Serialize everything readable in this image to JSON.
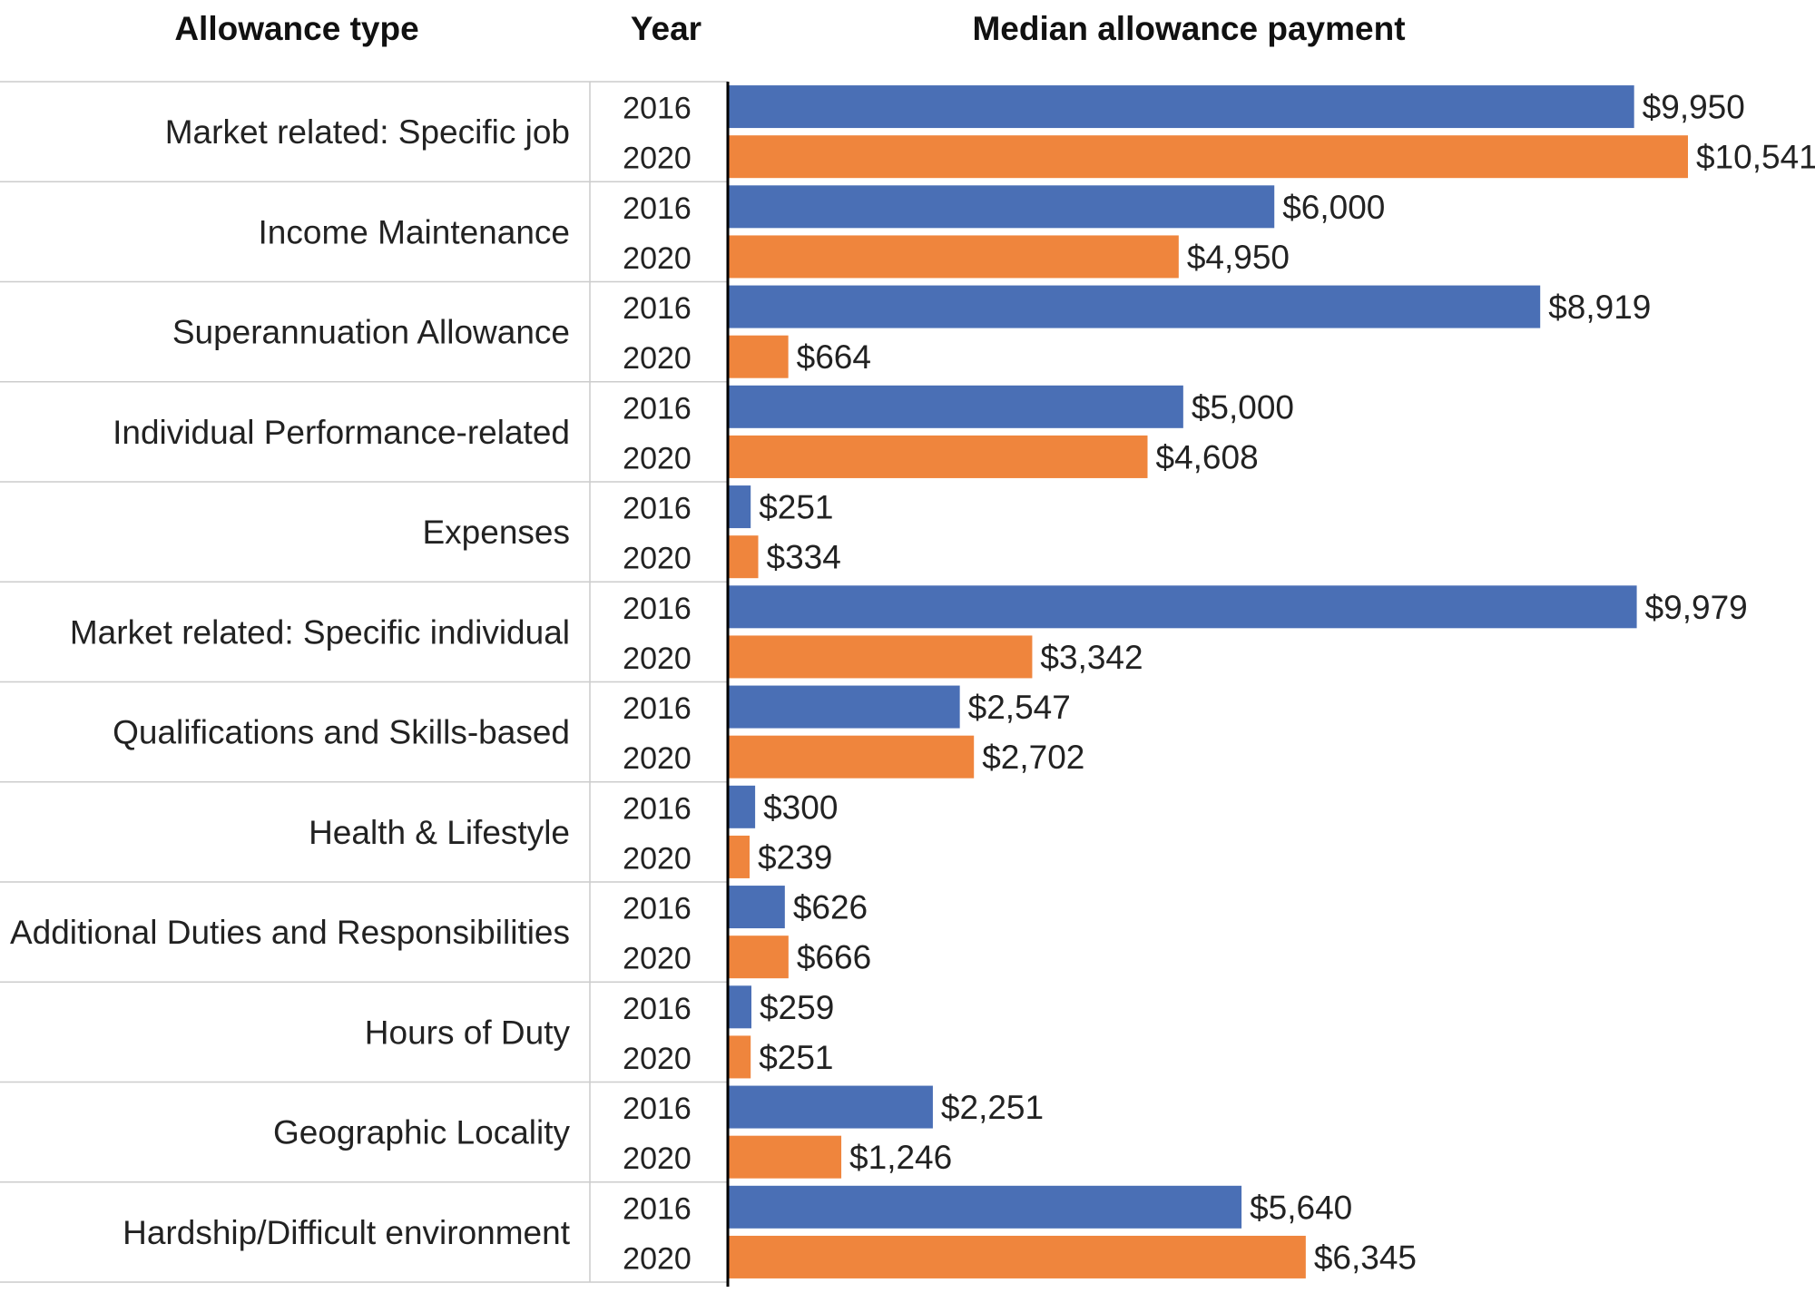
{
  "chart_data": {
    "type": "bar",
    "orientation": "horizontal",
    "headers": {
      "category": "Allowance type",
      "year": "Year",
      "value": "Median allowance payment"
    },
    "series": [
      {
        "name": "2016",
        "color": "#4a6fb5"
      },
      {
        "name": "2020",
        "color": "#ef853d"
      }
    ],
    "xlim": [
      0,
      10541
    ],
    "rows": [
      {
        "category": "Market related: Specific job",
        "values": [
          9950,
          10541
        ],
        "labels": [
          "$9,950",
          "$10,541"
        ]
      },
      {
        "category": "Income Maintenance",
        "values": [
          6000,
          4950
        ],
        "labels": [
          "$6,000",
          "$4,950"
        ]
      },
      {
        "category": "Superannuation Allowance",
        "values": [
          8919,
          664
        ],
        "labels": [
          "$8,919",
          "$664"
        ]
      },
      {
        "category": "Individual Performance-related",
        "values": [
          5000,
          4608
        ],
        "labels": [
          "$5,000",
          "$4,608"
        ]
      },
      {
        "category": "Expenses",
        "values": [
          251,
          334
        ],
        "labels": [
          "$251",
          "$334"
        ]
      },
      {
        "category": "Market related: Specific individual",
        "values": [
          9979,
          3342
        ],
        "labels": [
          "$9,979",
          "$3,342"
        ]
      },
      {
        "category": "Qualifications and Skills-based",
        "values": [
          2547,
          2702
        ],
        "labels": [
          "$2,547",
          "$2,702"
        ]
      },
      {
        "category": "Health & Lifestyle",
        "values": [
          300,
          239
        ],
        "labels": [
          "$300",
          "$239"
        ]
      },
      {
        "category": "Additional Duties and Responsibilities",
        "values": [
          626,
          666
        ],
        "labels": [
          "$626",
          "$666"
        ]
      },
      {
        "category": "Hours of Duty",
        "values": [
          259,
          251
        ],
        "labels": [
          "$259",
          "$251"
        ]
      },
      {
        "category": "Geographic Locality",
        "values": [
          2251,
          1246
        ],
        "labels": [
          "$2,251",
          "$1,246"
        ]
      },
      {
        "category": "Hardship/Difficult environment",
        "values": [
          5640,
          6345
        ],
        "labels": [
          "$5,640",
          "$6,345"
        ]
      }
    ]
  }
}
